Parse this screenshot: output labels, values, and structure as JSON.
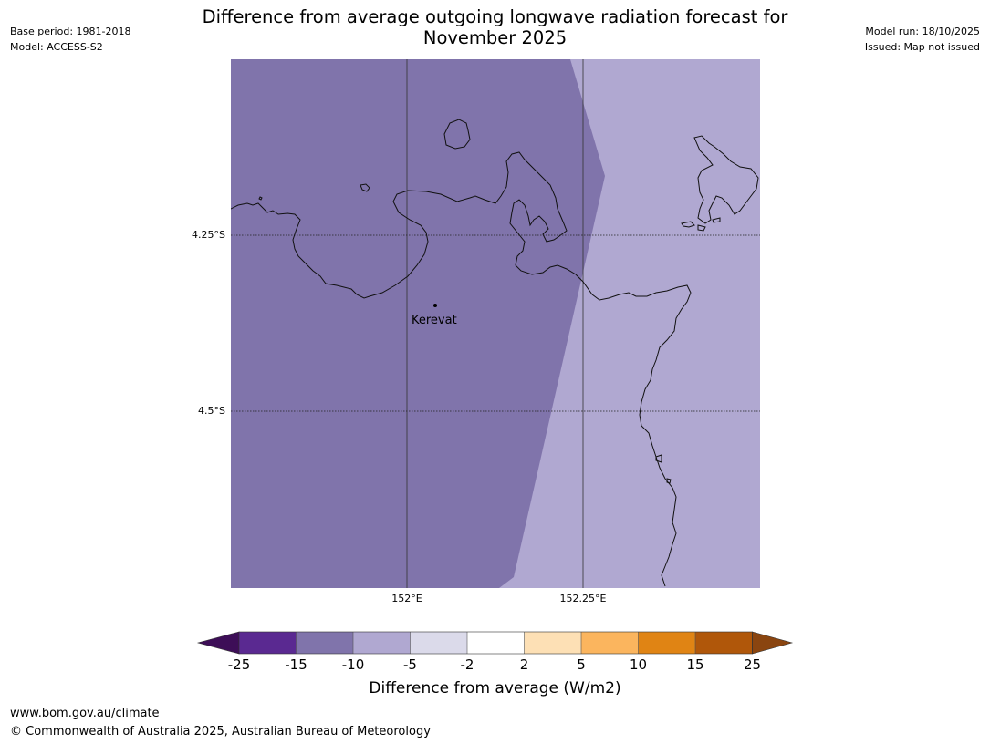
{
  "header": {
    "base_period": "Base period: 1981-2018",
    "model": "Model: ACCESS-S2",
    "title_line1": "Difference from average outgoing longwave radiation forecast for",
    "title_line2": "November 2025",
    "model_run": "Model run: 18/10/2025",
    "issued": "Issued: Map not issued"
  },
  "map": {
    "latitude_labels": [
      "4.25°S",
      "4.5°S"
    ],
    "longitude_labels": [
      "152°E",
      "152.25°E"
    ],
    "place": {
      "name": "Kerevat"
    },
    "regions": [
      {
        "name": "west",
        "category": "-15 to -10",
        "color": "#8074ab"
      },
      {
        "name": "east",
        "category": "-10 to -5",
        "color": "#b0a8d1"
      }
    ]
  },
  "colorbar": {
    "title": "Difference from average (W/m2)",
    "ticks": [
      "-25",
      "-15",
      "-10",
      "-5",
      "-2",
      "2",
      "5",
      "10",
      "15",
      "25"
    ],
    "colors": {
      "below": "#3d0e57",
      "bins": [
        "#5a2991",
        "#8074ab",
        "#b0a8d1",
        "#dbdaea",
        "#ffffff",
        "#fde0b5",
        "#fbb55e",
        "#e08414",
        "#b0570a"
      ],
      "above": "#8a4510"
    }
  },
  "footer": {
    "url": "www.bom.gov.au/climate",
    "copyright": "© Commonwealth of Australia 2025, Australian Bureau of Meteorology"
  }
}
